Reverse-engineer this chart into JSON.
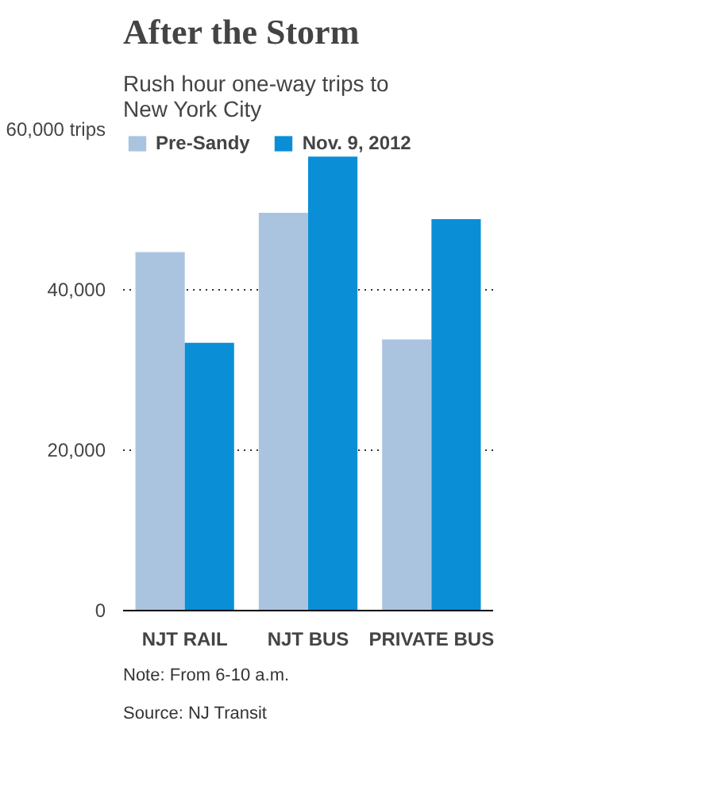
{
  "chart_data": {
    "type": "bar",
    "title": "After the Storm",
    "subtitle": "Rush hour one-way trips to New York City",
    "categories": [
      "NJT RAIL",
      "NJT BUS",
      "PRIVATE BUS"
    ],
    "series": [
      {
        "name": "Pre-Sandy",
        "color": "#aac4e0",
        "values": [
          44700,
          49600,
          33800
        ]
      },
      {
        "name": "Nov. 9, 2012",
        "color": "#0a8fd6",
        "values": [
          33400,
          56600,
          48800
        ]
      }
    ],
    "ylim": [
      0,
      60000
    ],
    "yticks": [
      0,
      {
        "value": 20000,
        "label": "20,000"
      },
      {
        "value": 40000,
        "label": "40,000"
      },
      {
        "value": 60000,
        "label": "60,000 trips"
      }
    ],
    "grid": "y",
    "legend": "top",
    "annotations": [
      "Note: From 6-10 a.m.",
      "Source: NJ Transit"
    ]
  }
}
